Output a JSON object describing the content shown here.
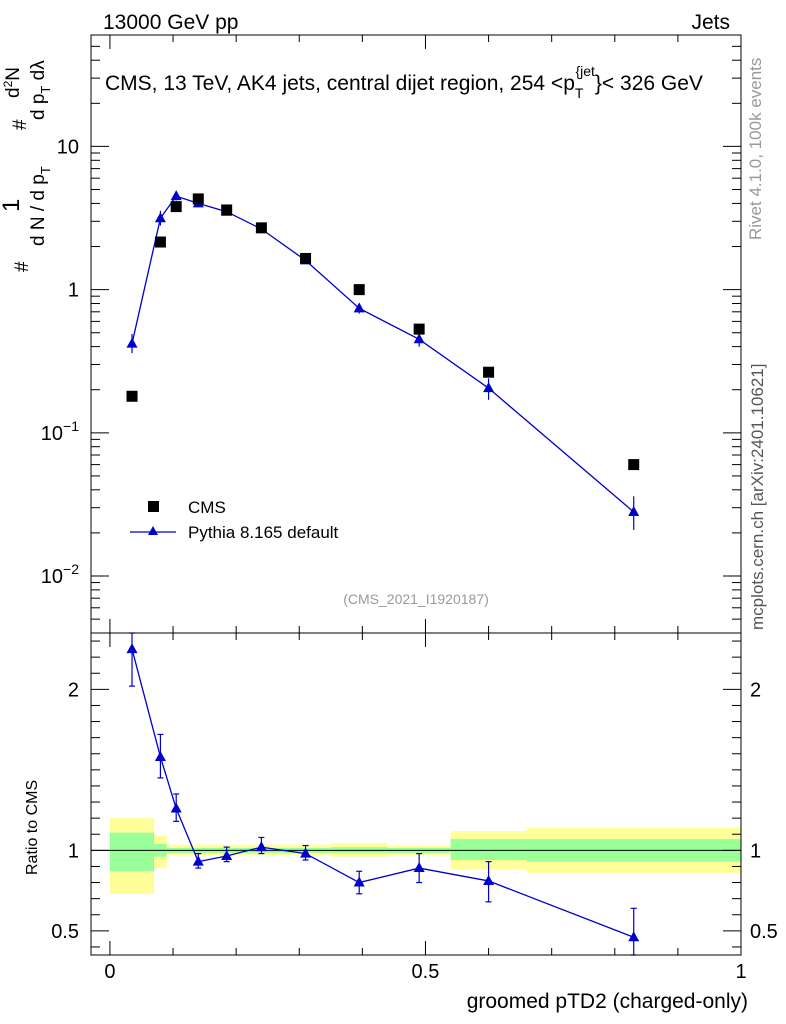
{
  "header": {
    "left": "13000 GeV pp",
    "right": "Jets"
  },
  "title": {
    "prefix": "CMS, 13 TeV, AK4 jets, central dijet region, 254 <p",
    "sub": "T",
    "sup": "{jet",
    "suffix": "}< 326 GeV"
  },
  "side_text": {
    "rivet": "Rivet 4.1.0,  100k events",
    "mcplots": "mcplots.cern.ch [arXiv:2401.10621]"
  },
  "analysis_id": "(CMS_2021_I1920187)",
  "ylabel_top": {
    "hash1": "#",
    "one": "1",
    "den": "d N / d p",
    "den_sub": "T",
    "hash2": "#",
    "num2": "d",
    "num2_sup": "2",
    "num2_tail": "N",
    "den2": "d p",
    "den2_sub": "T",
    "den2_tail": " dλ"
  },
  "legend": [
    {
      "label": "CMS",
      "marker": "square",
      "color": "#000000"
    },
    {
      "label": "Pythia 8.165 default",
      "marker": "triangle",
      "color": "#0000cc"
    }
  ],
  "colors": {
    "data": "#000000",
    "mc": "#0000cc",
    "band_inner": "#99ff99",
    "band_outer": "#ffff99",
    "watermark": "#999999"
  },
  "chart_data": [
    {
      "type": "scatter",
      "panel": "main",
      "yscale": "log",
      "ylim": [
        0.004,
        60
      ],
      "xlim": [
        -0.03,
        1.0
      ],
      "yticks": [
        {
          "v": 0.01,
          "base": "10",
          "exp": "−2"
        },
        {
          "v": 0.1,
          "base": "10",
          "exp": "−1"
        },
        {
          "v": 1,
          "base": "1",
          "exp": ""
        },
        {
          "v": 10,
          "base": "10",
          "exp": ""
        }
      ],
      "series": [
        {
          "name": "CMS",
          "x": [
            0.035,
            0.08,
            0.105,
            0.14,
            0.185,
            0.24,
            0.31,
            0.395,
            0.49,
            0.6,
            0.83
          ],
          "values": [
            0.18,
            2.15,
            3.8,
            4.3,
            3.6,
            2.7,
            1.65,
            1.0,
            0.53,
            0.265,
            0.06
          ]
        },
        {
          "name": "Pythia 8.165 default",
          "x": [
            0.035,
            0.08,
            0.105,
            0.14,
            0.185,
            0.24,
            0.31,
            0.395,
            0.49,
            0.6,
            0.83
          ],
          "values": [
            0.42,
            3.15,
            4.5,
            4.0,
            3.5,
            2.65,
            1.6,
            0.74,
            0.45,
            0.205,
            0.028
          ],
          "err_low": [
            0.36,
            2.8,
            4.2,
            3.8,
            3.35,
            2.5,
            1.52,
            0.68,
            0.4,
            0.17,
            0.021
          ],
          "err_high": [
            0.49,
            3.55,
            4.85,
            4.2,
            3.65,
            2.8,
            1.7,
            0.8,
            0.5,
            0.24,
            0.036
          ]
        }
      ]
    },
    {
      "type": "line",
      "panel": "ratio",
      "ylabel": "Ratio to CMS",
      "xlabel": "groomed pTD2 (charged-only)",
      "ylim": [
        0.35,
        2.35
      ],
      "xlim": [
        -0.03,
        1.0
      ],
      "yticks": [
        "0.5",
        "1",
        "2"
      ],
      "xticks": [
        "0",
        "0.5",
        "1"
      ],
      "bands": [
        {
          "x0": 0.0,
          "x1": 0.07,
          "inner_lo": 0.87,
          "inner_hi": 1.11,
          "outer_lo": 0.73,
          "outer_hi": 1.2
        },
        {
          "x0": 0.07,
          "x1": 0.09,
          "inner_lo": 0.96,
          "inner_hi": 1.04,
          "outer_lo": 0.89,
          "outer_hi": 1.09
        },
        {
          "x0": 0.09,
          "x1": 0.35,
          "inner_lo": 0.985,
          "inner_hi": 1.015,
          "outer_lo": 0.97,
          "outer_hi": 1.035
        },
        {
          "x0": 0.35,
          "x1": 0.44,
          "inner_lo": 0.985,
          "inner_hi": 1.02,
          "outer_lo": 0.96,
          "outer_hi": 1.045
        },
        {
          "x0": 0.44,
          "x1": 0.54,
          "inner_lo": 0.985,
          "inner_hi": 1.015,
          "outer_lo": 0.97,
          "outer_hi": 1.03
        },
        {
          "x0": 0.54,
          "x1": 0.66,
          "inner_lo": 0.94,
          "inner_hi": 1.07,
          "outer_lo": 0.88,
          "outer_hi": 1.12
        },
        {
          "x0": 0.66,
          "x1": 1.0,
          "inner_lo": 0.93,
          "inner_hi": 1.07,
          "outer_lo": 0.86,
          "outer_hi": 1.14
        }
      ],
      "series": [
        {
          "name": "Pythia 8.165 default",
          "x": [
            0.035,
            0.08,
            0.105,
            0.14,
            0.185,
            0.24,
            0.31,
            0.395,
            0.49,
            0.6,
            0.83
          ],
          "values": [
            2.25,
            1.58,
            1.26,
            0.93,
            0.965,
            1.02,
            0.98,
            0.8,
            0.89,
            0.81,
            0.46
          ],
          "err_low": [
            2.02,
            1.45,
            1.18,
            0.89,
            0.93,
            0.98,
            0.94,
            0.73,
            0.8,
            0.68,
            0.28
          ],
          "err_high": [
            2.45,
            1.72,
            1.35,
            0.98,
            1.02,
            1.08,
            1.03,
            0.87,
            0.98,
            0.93,
            0.64
          ]
        }
      ]
    }
  ]
}
